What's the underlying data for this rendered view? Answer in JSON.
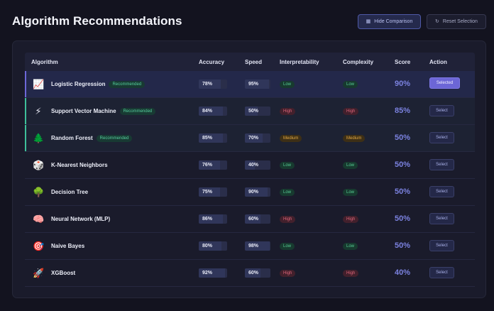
{
  "header": {
    "title": "Algorithm Recommendations",
    "hide_comparison_label": "Hide Comparison",
    "hide_comparison_icon": "table-icon",
    "reset_selection_label": "Reset Selection",
    "reset_selection_icon": "refresh-icon"
  },
  "table": {
    "columns": [
      "Algorithm",
      "Accuracy",
      "Speed",
      "Interpretability",
      "Complexity",
      "Score",
      "Action"
    ],
    "recommended_badge": "Recommended",
    "select_label": "Select",
    "selected_label": "Selected",
    "rows": [
      {
        "icon": "📈",
        "icon_name": "chart-increasing-icon",
        "name": "Logistic Regression",
        "recommended": true,
        "selected": true,
        "accuracy": "78%",
        "accuracy_value": 78,
        "speed": "95%",
        "speed_value": 95,
        "interpretability": "Low",
        "complexity": "Low",
        "score": "90%"
      },
      {
        "icon": "⚡",
        "icon_name": "lightning-icon",
        "name": "Support Vector Machine",
        "recommended": true,
        "selected": false,
        "accuracy": "84%",
        "accuracy_value": 84,
        "speed": "50%",
        "speed_value": 50,
        "interpretability": "High",
        "complexity": "High",
        "score": "85%"
      },
      {
        "icon": "🌲",
        "icon_name": "evergreen-tree-icon",
        "name": "Random Forest",
        "recommended": true,
        "selected": false,
        "accuracy": "85%",
        "accuracy_value": 85,
        "speed": "70%",
        "speed_value": 70,
        "interpretability": "Medium",
        "complexity": "Medium",
        "score": "50%"
      },
      {
        "icon": "🎲",
        "icon_name": "dice-icon",
        "name": "K-Nearest Neighbors",
        "recommended": false,
        "selected": false,
        "accuracy": "76%",
        "accuracy_value": 76,
        "speed": "40%",
        "speed_value": 40,
        "interpretability": "Low",
        "complexity": "Low",
        "score": "50%"
      },
      {
        "icon": "🌳",
        "icon_name": "tree-icon",
        "name": "Decision Tree",
        "recommended": false,
        "selected": false,
        "accuracy": "75%",
        "accuracy_value": 75,
        "speed": "90%",
        "speed_value": 90,
        "interpretability": "Low",
        "complexity": "Low",
        "score": "50%"
      },
      {
        "icon": "🧠",
        "icon_name": "brain-icon",
        "name": "Neural Network (MLP)",
        "recommended": false,
        "selected": false,
        "accuracy": "86%",
        "accuracy_value": 86,
        "speed": "60%",
        "speed_value": 60,
        "interpretability": "High",
        "complexity": "High",
        "score": "50%"
      },
      {
        "icon": "🎯",
        "icon_name": "target-icon",
        "name": "Naive Bayes",
        "recommended": false,
        "selected": false,
        "accuracy": "80%",
        "accuracy_value": 80,
        "speed": "98%",
        "speed_value": 98,
        "interpretability": "Low",
        "complexity": "Low",
        "score": "50%"
      },
      {
        "icon": "🚀",
        "icon_name": "rocket-icon",
        "name": "XGBoost",
        "recommended": false,
        "selected": false,
        "accuracy": "92%",
        "accuracy_value": 92,
        "speed": "60%",
        "speed_value": 60,
        "interpretability": "High",
        "complexity": "High",
        "score": "40%"
      }
    ]
  },
  "colors": {
    "accent": "#6c66d6",
    "recommended": "#3ec09a",
    "low": "#58cd95",
    "medium": "#e3a843",
    "high": "#e0657a"
  }
}
